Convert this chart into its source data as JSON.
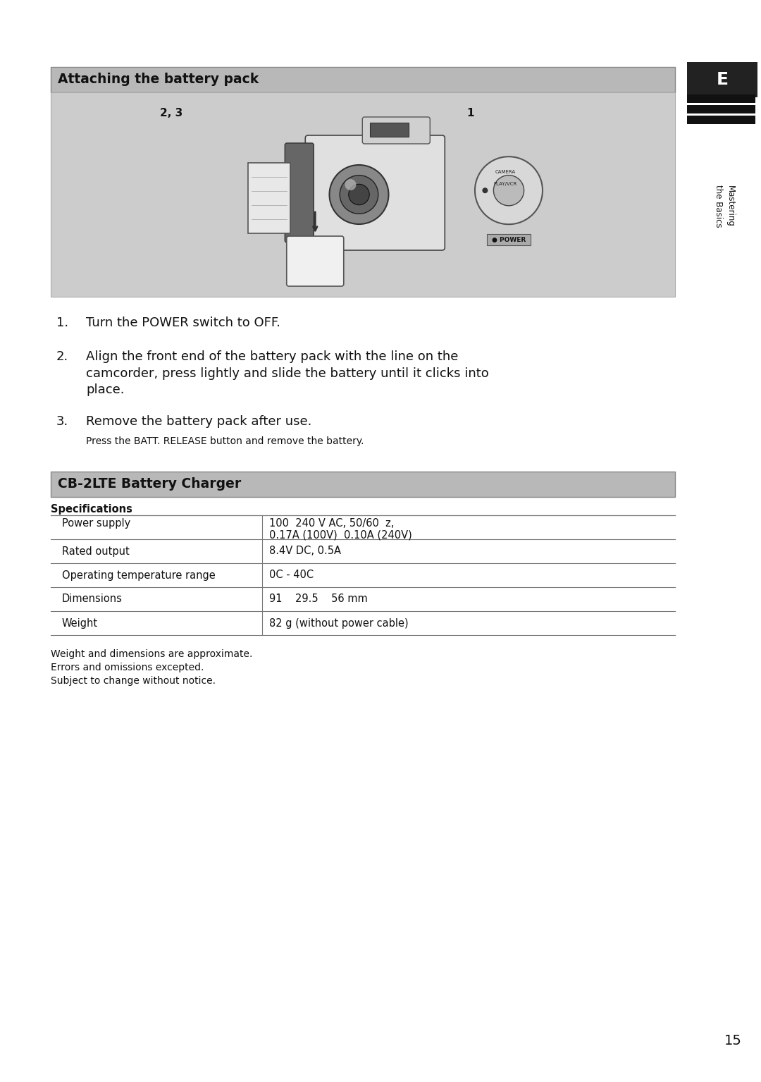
{
  "page_bg": "#ffffff",
  "header_bg": "#b8b8b8",
  "image_bg": "#cccccc",
  "section_title_1": "Attaching the battery pack",
  "section_title_2": "CB-2LTE Battery Charger",
  "steps": [
    {
      "num": "1.",
      "text": "Turn the POWER switch to OFF."
    },
    {
      "num": "2.",
      "text": "Align the front end of the battery pack with the line on the\ncamcorder, press lightly and slide the battery until it clicks into\nplace."
    },
    {
      "num": "3.",
      "text": "Remove the battery pack after use.",
      "sub": "Press the BATT. RELEASE button and remove the battery."
    }
  ],
  "spec_header": "Specifications",
  "spec_rows": [
    {
      "label": "Power supply",
      "value": "100  240 V AC, 50/60  z,\n0.17A (100V)  0.10A (240V)"
    },
    {
      "label": "Rated output",
      "value": "8.4V DC, 0.5A"
    },
    {
      "label": "Operating temperature range",
      "value": "0C - 40C"
    },
    {
      "label": "Dimensions",
      "value": "91    29.5    56 mm"
    },
    {
      "label": "Weight",
      "value": "82 g (without power cable)"
    }
  ],
  "footnotes": [
    "Weight and dimensions are approximate.",
    "Errors and omissions excepted.",
    "Subject to change without notice."
  ],
  "side_label_1": "Mastering",
  "side_label_2": "the Basics",
  "page_num": "15",
  "tab_label": "E"
}
